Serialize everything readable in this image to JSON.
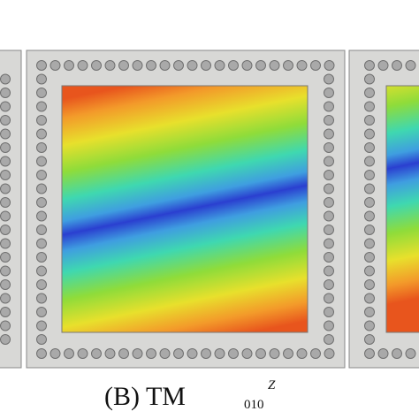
{
  "caption": {
    "prefix": "(B) TM",
    "subscript": "010",
    "superscript": "Z"
  }
}
